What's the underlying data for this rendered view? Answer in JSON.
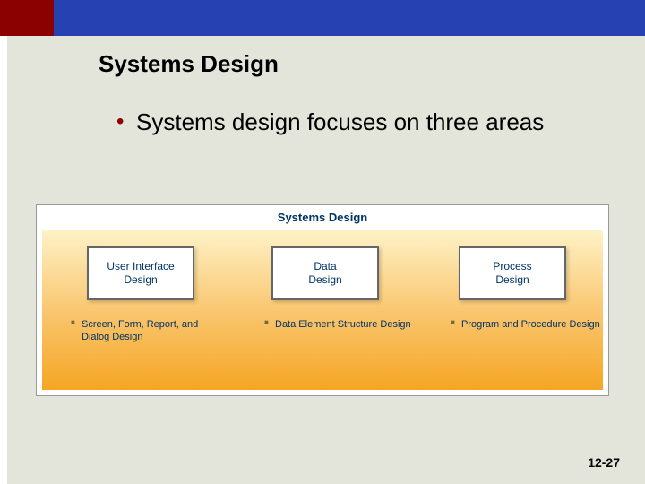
{
  "header": {
    "red_block_color": "#8b0000",
    "blue_bar_color": "#2541b2"
  },
  "slide": {
    "background_color": "#e4e5da",
    "title": "Systems Design",
    "title_fontsize": 26,
    "bullet_text": "Systems design focuses on three areas",
    "bullet_color": "#8b0000",
    "page_number": "12-27"
  },
  "diagram": {
    "type": "infographic",
    "title": "Systems Design",
    "title_color": "#003366",
    "title_fontsize": 13,
    "border_color": "#999999",
    "gradient_top": "#fef2c6",
    "gradient_mid": "#f9c369",
    "gradient_bottom": "#f5a623",
    "box_border_color": "#666666",
    "box_bg_color": "#ffffff",
    "box_text_color": "#003366",
    "box_fontsize": 12,
    "sub_fontsize": 11,
    "sub_bullet_color": "#7a6a3a",
    "boxes": [
      {
        "label": "User Interface\nDesign",
        "sub": "Screen, Form, Report, and Dialog Design"
      },
      {
        "label": "Data\nDesign",
        "sub": "Data Element Structure Design"
      },
      {
        "label": "Process\nDesign",
        "sub": "Program and Procedure Design"
      }
    ]
  }
}
